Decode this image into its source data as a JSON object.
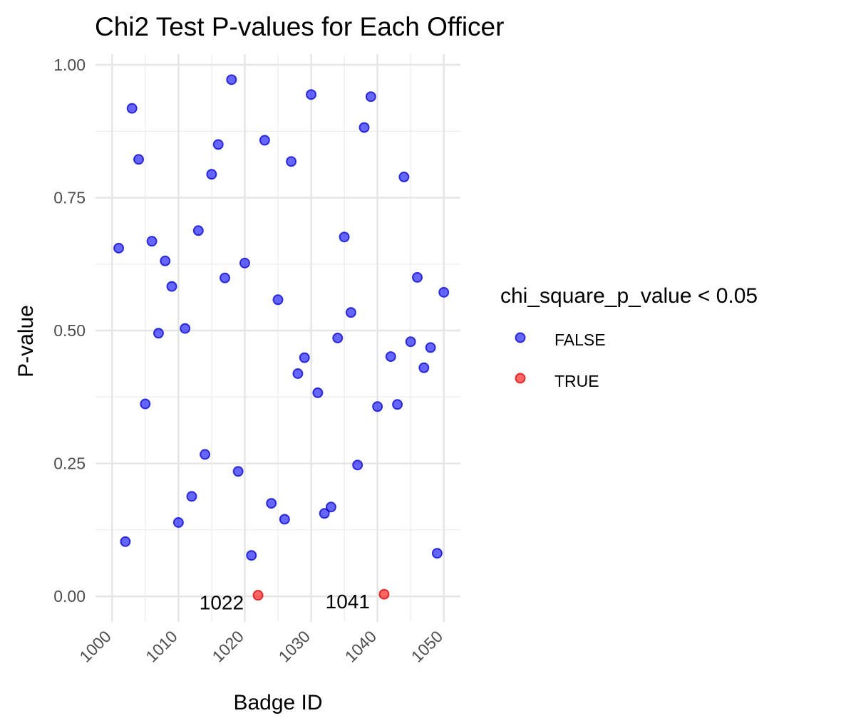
{
  "chart_data": {
    "type": "scatter",
    "title": "Chi2 Test P-values for Each Officer",
    "xlabel": "Badge ID",
    "ylabel": "P-value",
    "xlim": [
      997.5,
      1052.5
    ],
    "ylim": [
      -0.048,
      1.02
    ],
    "x_ticks": [
      1000,
      1010,
      1020,
      1030,
      1040,
      1050
    ],
    "x_tick_labels": [
      "1000",
      "1010",
      "1020",
      "1030",
      "1040",
      "1050"
    ],
    "y_ticks": [
      0,
      0.25,
      0.5,
      0.75,
      1
    ],
    "y_tick_labels": [
      "0.00",
      "0.25",
      "0.50",
      "0.75",
      "1.00"
    ],
    "grid": true,
    "legend": {
      "title": "chi_square_p_value < 0.05",
      "position": "right",
      "entries": [
        {
          "label": "FALSE",
          "color": "#0000ff"
        },
        {
          "label": "TRUE",
          "color": "#ff0000"
        }
      ]
    },
    "points": [
      {
        "x": 1001,
        "y": 0.655,
        "sig": false
      },
      {
        "x": 1002,
        "y": 0.103,
        "sig": false
      },
      {
        "x": 1003,
        "y": 0.918,
        "sig": false
      },
      {
        "x": 1004,
        "y": 0.822,
        "sig": false
      },
      {
        "x": 1005,
        "y": 0.362,
        "sig": false
      },
      {
        "x": 1006,
        "y": 0.668,
        "sig": false
      },
      {
        "x": 1007,
        "y": 0.495,
        "sig": false
      },
      {
        "x": 1008,
        "y": 0.631,
        "sig": false
      },
      {
        "x": 1009,
        "y": 0.583,
        "sig": false
      },
      {
        "x": 1010,
        "y": 0.139,
        "sig": false
      },
      {
        "x": 1011,
        "y": 0.504,
        "sig": false
      },
      {
        "x": 1012,
        "y": 0.188,
        "sig": false
      },
      {
        "x": 1013,
        "y": 0.688,
        "sig": false
      },
      {
        "x": 1014,
        "y": 0.267,
        "sig": false
      },
      {
        "x": 1015,
        "y": 0.794,
        "sig": false
      },
      {
        "x": 1016,
        "y": 0.85,
        "sig": false
      },
      {
        "x": 1017,
        "y": 0.599,
        "sig": false
      },
      {
        "x": 1018,
        "y": 0.972,
        "sig": false
      },
      {
        "x": 1019,
        "y": 0.235,
        "sig": false
      },
      {
        "x": 1020,
        "y": 0.627,
        "sig": false
      },
      {
        "x": 1021,
        "y": 0.077,
        "sig": false
      },
      {
        "x": 1022,
        "y": 0.002,
        "sig": true,
        "label": "1022"
      },
      {
        "x": 1023,
        "y": 0.858,
        "sig": false
      },
      {
        "x": 1024,
        "y": 0.175,
        "sig": false
      },
      {
        "x": 1025,
        "y": 0.558,
        "sig": false
      },
      {
        "x": 1026,
        "y": 0.145,
        "sig": false
      },
      {
        "x": 1027,
        "y": 0.818,
        "sig": false
      },
      {
        "x": 1028,
        "y": 0.419,
        "sig": false
      },
      {
        "x": 1029,
        "y": 0.449,
        "sig": false
      },
      {
        "x": 1030,
        "y": 0.944,
        "sig": false
      },
      {
        "x": 1031,
        "y": 0.383,
        "sig": false
      },
      {
        "x": 1032,
        "y": 0.156,
        "sig": false
      },
      {
        "x": 1033,
        "y": 0.168,
        "sig": false
      },
      {
        "x": 1034,
        "y": 0.486,
        "sig": false
      },
      {
        "x": 1035,
        "y": 0.676,
        "sig": false
      },
      {
        "x": 1036,
        "y": 0.534,
        "sig": false
      },
      {
        "x": 1037,
        "y": 0.247,
        "sig": false
      },
      {
        "x": 1038,
        "y": 0.882,
        "sig": false
      },
      {
        "x": 1039,
        "y": 0.94,
        "sig": false
      },
      {
        "x": 1040,
        "y": 0.357,
        "sig": false
      },
      {
        "x": 1041,
        "y": 0.004,
        "sig": true,
        "label": "1041"
      },
      {
        "x": 1042,
        "y": 0.451,
        "sig": false
      },
      {
        "x": 1043,
        "y": 0.361,
        "sig": false
      },
      {
        "x": 1044,
        "y": 0.789,
        "sig": false
      },
      {
        "x": 1045,
        "y": 0.479,
        "sig": false
      },
      {
        "x": 1046,
        "y": 0.6,
        "sig": false
      },
      {
        "x": 1047,
        "y": 0.43,
        "sig": false
      },
      {
        "x": 1048,
        "y": 0.468,
        "sig": false
      },
      {
        "x": 1049,
        "y": 0.081,
        "sig": false
      },
      {
        "x": 1050,
        "y": 0.572,
        "sig": false
      }
    ]
  }
}
